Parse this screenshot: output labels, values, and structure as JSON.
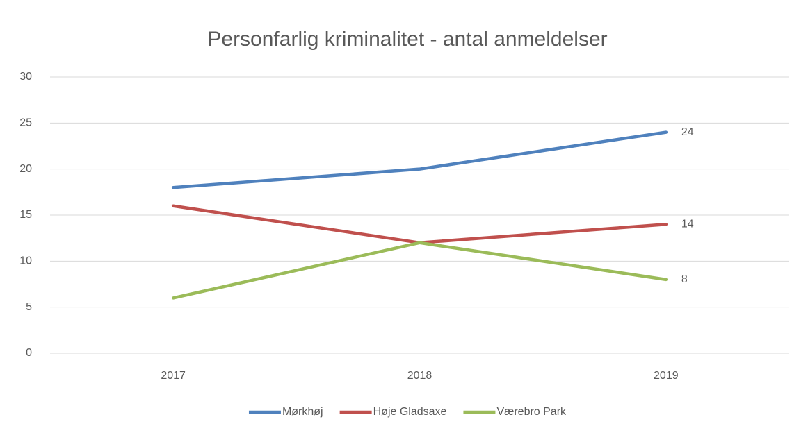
{
  "chart_data": {
    "type": "line",
    "title": "Personfarlig kriminalitet - antal anmeldelser",
    "categories": [
      "2017",
      "2018",
      "2019"
    ],
    "series": [
      {
        "name": "Mørkhøj",
        "color": "#4f81bd",
        "values": [
          18,
          20,
          24
        ]
      },
      {
        "name": "Høje Gladsaxe",
        "color": "#c0504d",
        "values": [
          16,
          12,
          14
        ]
      },
      {
        "name": "Værebro Park",
        "color": "#9bbb59",
        "values": [
          6,
          12,
          8
        ]
      }
    ],
    "ylim": [
      0,
      30
    ],
    "yticks": [
      0,
      5,
      10,
      15,
      20,
      25,
      30
    ],
    "grid": true,
    "legend": "bottom"
  }
}
